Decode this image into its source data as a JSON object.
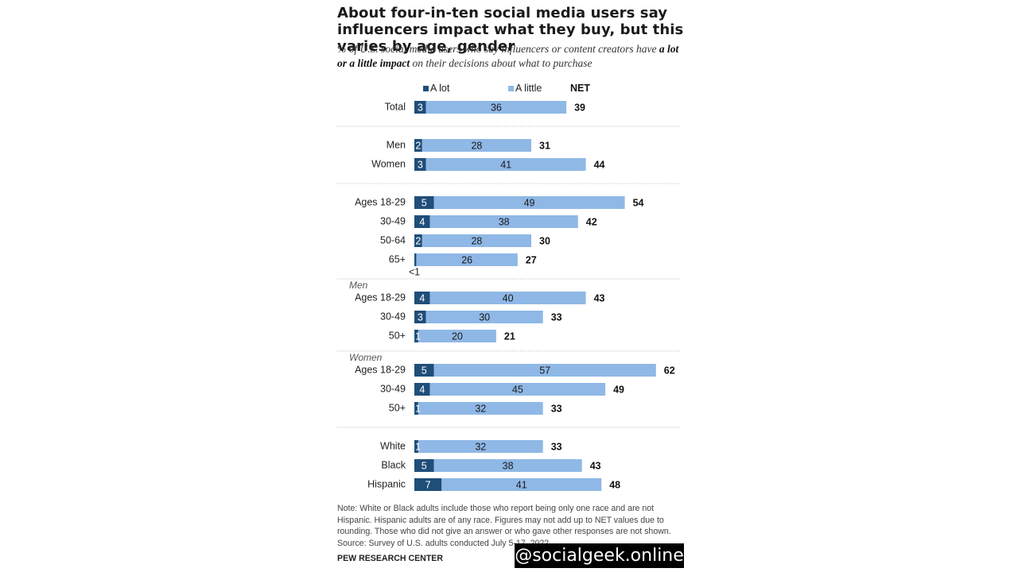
{
  "title": "About four-in-ten social media users say influencers impact what they buy, but this varies by age, gender",
  "subtitle_pre": "% of U.S. social media users who say influencers or content creators have ",
  "subtitle_bold": "a lot or a little impact",
  "subtitle_post": " on their decisions about what to purchase",
  "legend": {
    "a_lot": "A lot",
    "a_little": "A little",
    "net": "NET"
  },
  "colors": {
    "a_lot": "#1f4e79",
    "a_little": "#8fb8e6",
    "separator": "#bdbdbd"
  },
  "footnote": "Note: White or Black adults include those who report being only one race and are not Hispanic. Hispanic adults are of any race. Figures may not add up to NET values due to rounding. Those who did not give an answer or who gave other responses are not shown.",
  "source": "Source: Survey of U.S. adults conducted July 5-17, 2022.",
  "brand": "PEW RESEARCH CENTER",
  "watermark": "@socialgeek.online",
  "chart_data": {
    "type": "bar",
    "orientation": "horizontal",
    "stacked": true,
    "series_names": [
      "A lot",
      "A little"
    ],
    "net_label": "NET",
    "groups": [
      {
        "heading": "",
        "rows": [
          {
            "label": "Total",
            "a_lot": 3,
            "a_little": 36,
            "net": 39
          }
        ]
      },
      {
        "heading": "",
        "rows": [
          {
            "label": "Men",
            "a_lot": 2,
            "a_little": 28,
            "net": 31
          },
          {
            "label": "Women",
            "a_lot": 3,
            "a_little": 41,
            "net": 44
          }
        ]
      },
      {
        "heading": "",
        "rows": [
          {
            "label": "Ages 18-29",
            "a_lot": 5,
            "a_little": 49,
            "net": 54
          },
          {
            "label": "30-49",
            "a_lot": 4,
            "a_little": 38,
            "net": 42
          },
          {
            "label": "50-64",
            "a_lot": 2,
            "a_little": 28,
            "net": 30
          },
          {
            "label": "65+",
            "a_lot": 0.5,
            "a_lot_label": "<1",
            "a_little": 26,
            "net": 27
          }
        ]
      },
      {
        "heading": "Men",
        "rows": [
          {
            "label": "Ages 18-29",
            "a_lot": 4,
            "a_little": 40,
            "net": 43
          },
          {
            "label": "30-49",
            "a_lot": 3,
            "a_little": 30,
            "net": 33
          },
          {
            "label": "50+",
            "a_lot": 1,
            "a_little": 20,
            "net": 21
          }
        ]
      },
      {
        "heading": "Women",
        "rows": [
          {
            "label": "Ages 18-29",
            "a_lot": 5,
            "a_little": 57,
            "net": 62
          },
          {
            "label": "30-49",
            "a_lot": 4,
            "a_little": 45,
            "net": 49
          },
          {
            "label": "50+",
            "a_lot": 1,
            "a_little": 32,
            "net": 33
          }
        ]
      },
      {
        "heading": "",
        "rows": [
          {
            "label": "White",
            "a_lot": 1,
            "a_little": 32,
            "net": 33
          },
          {
            "label": "Black",
            "a_lot": 5,
            "a_little": 38,
            "net": 43
          },
          {
            "label": "Hispanic",
            "a_lot": 7,
            "a_little": 41,
            "net": 48
          }
        ]
      }
    ]
  }
}
